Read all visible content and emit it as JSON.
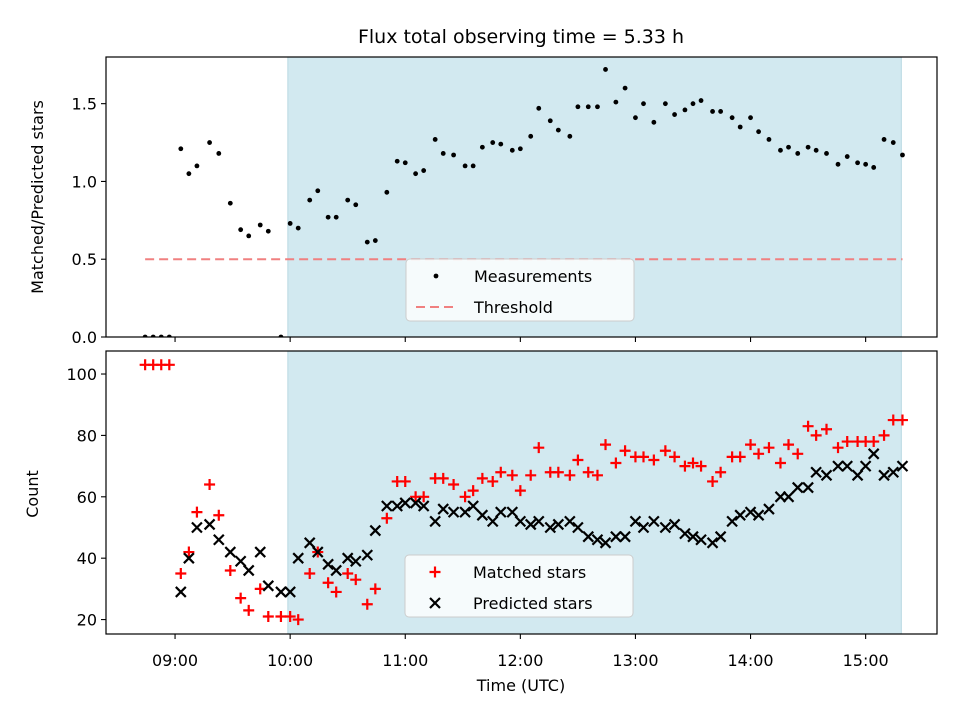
{
  "chart_data": {
    "title": "Flux total observing time = 5.33 h",
    "xlabel": "Time (UTC)",
    "x_tick_labels": [
      "09:00",
      "10:00",
      "11:00",
      "12:00",
      "13:00",
      "14:00",
      "15:00"
    ],
    "x_ticks_hours": [
      9,
      10,
      11,
      12,
      13,
      14,
      15
    ],
    "xlim_hours": [
      8.4,
      15.62
    ],
    "shaded_span_hours": [
      9.98,
      15.31
    ],
    "colors": {
      "shade": "#d2e9f0",
      "measurements": "#000000",
      "threshold": "#f08080",
      "matched": "#ff0000",
      "predicted": "#000000"
    },
    "panels": [
      {
        "type": "scatter",
        "ylabel": "Matched/Predicted stars",
        "ylim": [
          0,
          1.8
        ],
        "y_tick_labels": [
          "0.0",
          "0.5",
          "1.0",
          "1.5"
        ],
        "y_ticks": [
          0,
          0.5,
          1.0,
          1.5
        ],
        "legend_position": "lower-center",
        "series": [
          {
            "name": "Measurements",
            "marker": "dot",
            "x": [
              8.74,
              8.81,
              8.88,
              8.95,
              9.05,
              9.12,
              9.19,
              9.3,
              9.38,
              9.48,
              9.57,
              9.64,
              9.74,
              9.81,
              9.92,
              10.0,
              10.07,
              10.17,
              10.24,
              10.33,
              10.4,
              10.5,
              10.57,
              10.67,
              10.74,
              10.84,
              10.93,
              11.0,
              11.09,
              11.16,
              11.26,
              11.33,
              11.42,
              11.52,
              11.59,
              11.67,
              11.76,
              11.83,
              11.93,
              12.0,
              12.09,
              12.16,
              12.26,
              12.33,
              12.43,
              12.5,
              12.59,
              12.67,
              12.74,
              12.83,
              12.91,
              13.0,
              13.07,
              13.16,
              13.26,
              13.34,
              13.43,
              13.5,
              13.57,
              13.67,
              13.74,
              13.84,
              13.91,
              14.0,
              14.07,
              14.16,
              14.26,
              14.33,
              14.41,
              14.5,
              14.57,
              14.66,
              14.76,
              14.84,
              14.93,
              15.0,
              15.07,
              15.16,
              15.24,
              15.32
            ],
            "y": [
              0.0,
              0.0,
              0.0,
              0.0,
              1.21,
              1.05,
              1.1,
              1.25,
              1.18,
              0.86,
              0.69,
              0.65,
              0.72,
              0.68,
              0.0,
              0.73,
              0.7,
              0.88,
              0.94,
              0.77,
              0.77,
              0.88,
              0.85,
              0.61,
              0.62,
              0.93,
              1.13,
              1.12,
              1.05,
              1.07,
              1.27,
              1.18,
              1.17,
              1.1,
              1.1,
              1.22,
              1.25,
              1.24,
              1.2,
              1.21,
              1.29,
              1.47,
              1.39,
              1.33,
              1.29,
              1.48,
              1.48,
              1.48,
              1.72,
              1.51,
              1.6,
              1.41,
              1.5,
              1.38,
              1.5,
              1.43,
              1.46,
              1.5,
              1.52,
              1.45,
              1.45,
              1.41,
              1.35,
              1.41,
              1.32,
              1.27,
              1.2,
              1.22,
              1.18,
              1.22,
              1.2,
              1.18,
              1.11,
              1.16,
              1.12,
              1.11,
              1.09,
              1.27,
              1.25,
              1.17
            ]
          },
          {
            "name": "Threshold",
            "marker": "dashed-line",
            "x": [
              8.74,
              15.32
            ],
            "y": [
              0.5,
              0.5
            ]
          }
        ]
      },
      {
        "type": "scatter",
        "ylabel": "Count",
        "ylim": [
          15.3,
          107.5
        ],
        "y_tick_labels": [
          "20",
          "40",
          "60",
          "80",
          "100"
        ],
        "y_ticks": [
          20,
          40,
          60,
          80,
          100
        ],
        "legend_position": "lower-center",
        "series": [
          {
            "name": "Matched stars",
            "marker": "plus",
            "x": [
              8.74,
              8.81,
              8.88,
              8.95,
              9.05,
              9.12,
              9.19,
              9.3,
              9.38,
              9.48,
              9.57,
              9.64,
              9.74,
              9.81,
              9.92,
              10.0,
              10.07,
              10.17,
              10.24,
              10.33,
              10.4,
              10.5,
              10.57,
              10.67,
              10.74,
              10.84,
              10.93,
              11.0,
              11.09,
              11.16,
              11.26,
              11.33,
              11.42,
              11.52,
              11.59,
              11.67,
              11.76,
              11.83,
              11.93,
              12.0,
              12.09,
              12.16,
              12.26,
              12.33,
              12.43,
              12.5,
              12.59,
              12.67,
              12.74,
              12.83,
              12.91,
              13.0,
              13.07,
              13.16,
              13.26,
              13.34,
              13.43,
              13.5,
              13.57,
              13.67,
              13.74,
              13.84,
              13.91,
              14.0,
              14.07,
              14.16,
              14.26,
              14.33,
              14.41,
              14.5,
              14.57,
              14.66,
              14.76,
              14.84,
              14.93,
              15.0,
              15.07,
              15.16,
              15.24,
              15.32
            ],
            "y": [
              103,
              103,
              103,
              103,
              35,
              42,
              55,
              64,
              54,
              36,
              27,
              23,
              30,
              21,
              21,
              21,
              20,
              35,
              42,
              32,
              29,
              35,
              33,
              25,
              30,
              53,
              65,
              65,
              60,
              60,
              66,
              66,
              64,
              60,
              62,
              66,
              65,
              68,
              67,
              62,
              67,
              76,
              68,
              68,
              67,
              72,
              68,
              67,
              77,
              71,
              75,
              73,
              73,
              72,
              75,
              73,
              70,
              71,
              70,
              65,
              68,
              73,
              73,
              77,
              74,
              76,
              71,
              77,
              74,
              83,
              80,
              82,
              76,
              78,
              78,
              78,
              78,
              80,
              85,
              85
            ]
          },
          {
            "name": "Predicted stars",
            "marker": "x",
            "x": [
              9.05,
              9.12,
              9.19,
              9.3,
              9.38,
              9.48,
              9.57,
              9.64,
              9.74,
              9.81,
              9.92,
              10.0,
              10.07,
              10.17,
              10.24,
              10.33,
              10.4,
              10.5,
              10.57,
              10.67,
              10.74,
              10.84,
              10.93,
              11.0,
              11.09,
              11.16,
              11.26,
              11.33,
              11.42,
              11.52,
              11.59,
              11.67,
              11.76,
              11.83,
              11.93,
              12.0,
              12.09,
              12.16,
              12.26,
              12.33,
              12.43,
              12.5,
              12.59,
              12.67,
              12.74,
              12.83,
              12.91,
              13.0,
              13.07,
              13.16,
              13.26,
              13.34,
              13.43,
              13.5,
              13.57,
              13.67,
              13.74,
              13.84,
              13.91,
              14.0,
              14.07,
              14.16,
              14.26,
              14.33,
              14.41,
              14.5,
              14.57,
              14.66,
              14.76,
              14.84,
              14.93,
              15.0,
              15.07,
              15.16,
              15.24,
              15.32
            ],
            "y": [
              29,
              40,
              50,
              51,
              46,
              42,
              39,
              36,
              42,
              31,
              29,
              29,
              40,
              45,
              42,
              38,
              36,
              40,
              39,
              41,
              49,
              57,
              57,
              58,
              58,
              57,
              52,
              56,
              55,
              55,
              57,
              54,
              52,
              55,
              55,
              52,
              51,
              52,
              50,
              51,
              52,
              50,
              47,
              46,
              45,
              47,
              47,
              52,
              50,
              52,
              50,
              51,
              48,
              47,
              46,
              45,
              47,
              52,
              54,
              55,
              54,
              56,
              60,
              60,
              63,
              63,
              68,
              67,
              70,
              70,
              67,
              70,
              74,
              67,
              68,
              70
            ]
          }
        ]
      }
    ]
  }
}
